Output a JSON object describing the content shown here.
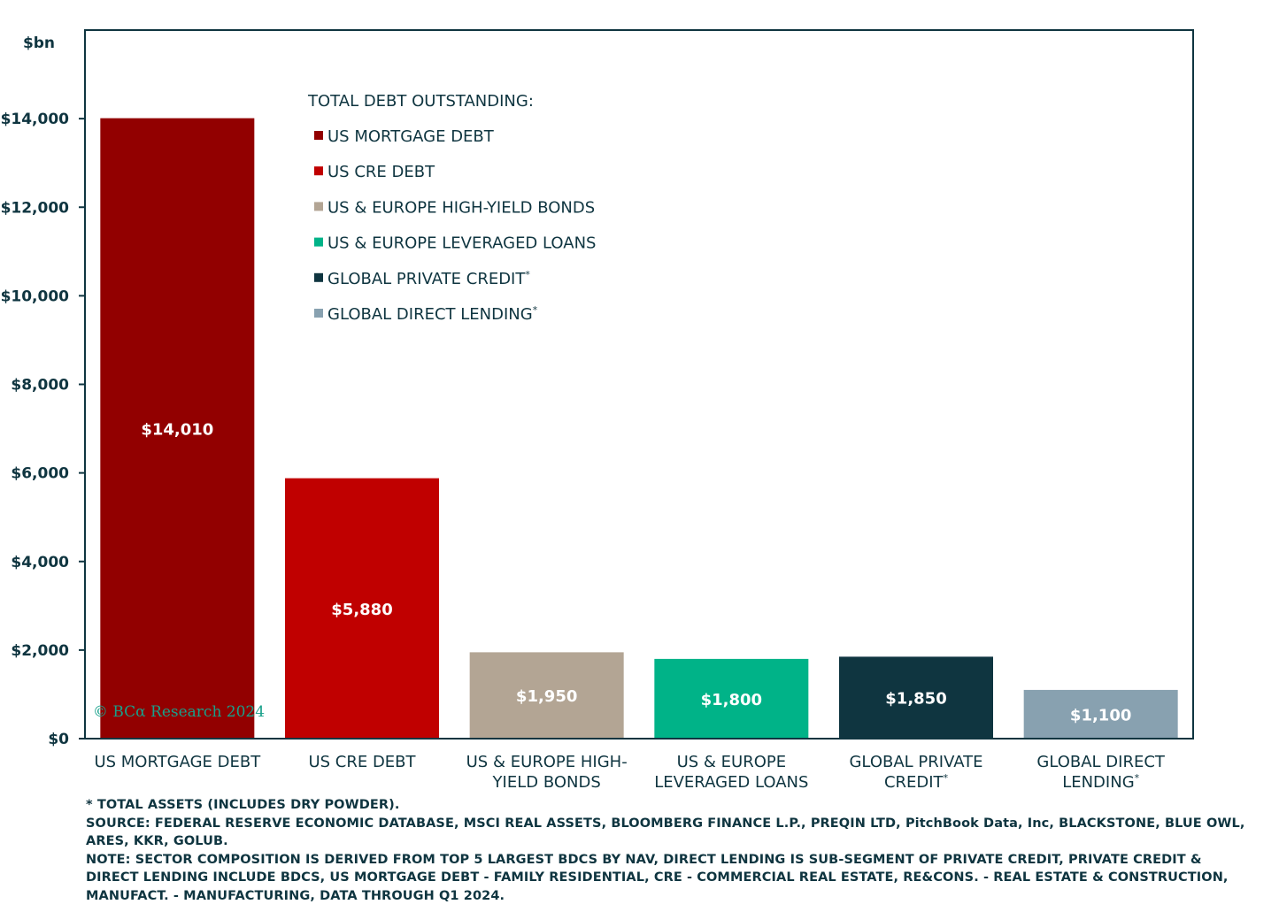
{
  "chart_data": {
    "type": "bar",
    "ylabel": "$bn",
    "ylim": [
      0,
      16000
    ],
    "yticks": [
      "$0",
      "$2,000",
      "$4,000",
      "$6,000",
      "$8,000",
      "$10,000",
      "$12,000",
      "$14,000"
    ],
    "ytick_values": [
      0,
      2000,
      4000,
      6000,
      8000,
      10000,
      12000,
      14000
    ],
    "categories": [
      {
        "lines": [
          "US MORTGAGE DEBT"
        ],
        "asterisk": false
      },
      {
        "lines": [
          "US CRE DEBT"
        ],
        "asterisk": false
      },
      {
        "lines": [
          "US & EUROPE HIGH-",
          "YIELD BONDS"
        ],
        "asterisk": false
      },
      {
        "lines": [
          "US & EUROPE",
          "LEVERAGED LOANS"
        ],
        "asterisk": false
      },
      {
        "lines": [
          "GLOBAL PRIVATE",
          "CREDIT"
        ],
        "asterisk": true
      },
      {
        "lines": [
          "GLOBAL DIRECT",
          "LENDING"
        ],
        "asterisk": true
      }
    ],
    "values": [
      14010,
      5880,
      1950,
      1800,
      1850,
      1100
    ],
    "data_labels": [
      "$14,010",
      "$5,880",
      "$1,950",
      "$1,800",
      "$1,850",
      "$1,100"
    ],
    "colors": [
      "#920000",
      "#c00000",
      "#b3a594",
      "#00b388",
      "#0f3540",
      "#88a1b0"
    ],
    "legend": {
      "title": "TOTAL DEBT OUTSTANDING:",
      "position": "top-center",
      "items": [
        {
          "label": "US MORTGAGE DEBT",
          "asterisk": false,
          "color": "#920000"
        },
        {
          "label": "US CRE DEBT",
          "asterisk": false,
          "color": "#c00000"
        },
        {
          "label": "US & EUROPE HIGH-YIELD BONDS",
          "asterisk": false,
          "color": "#b3a594"
        },
        {
          "label": "US & EUROPE LEVERAGED LOANS",
          "asterisk": false,
          "color": "#00b388"
        },
        {
          "label": "GLOBAL PRIVATE CREDIT",
          "asterisk": true,
          "color": "#0f3540"
        },
        {
          "label": "GLOBAL DIRECT LENDING",
          "asterisk": true,
          "color": "#88a1b0"
        }
      ]
    },
    "grid": false,
    "watermark": "© BCα Research 2024"
  },
  "footnotes": [
    "* TOTAL ASSETS (INCLUDES DRY POWDER).",
    "SOURCE: FEDERAL RESERVE ECONOMIC DATABASE, MSCI REAL ASSETS, BLOOMBERG FINANCE L.P., PREQIN LTD, PitchBook Data, Inc, BLACKSTONE, BLUE OWL, ARES, KKR, GOLUB.",
    "NOTE: SECTOR COMPOSITION IS DERIVED FROM TOP 5 LARGEST BDCS BY NAV, DIRECT LENDING IS SUB-SEGMENT OF PRIVATE CREDIT, PRIVATE CREDIT & DIRECT LENDING INCLUDE BDCS, US MORTGAGE DEBT - FAMILY RESIDENTIAL, CRE - COMMERCIAL REAL ESTATE, RE&CONS. - REAL ESTATE & CONSTRUCTION, MANUFACT. - MANUFACTURING, DATA THROUGH Q1 2024."
  ]
}
